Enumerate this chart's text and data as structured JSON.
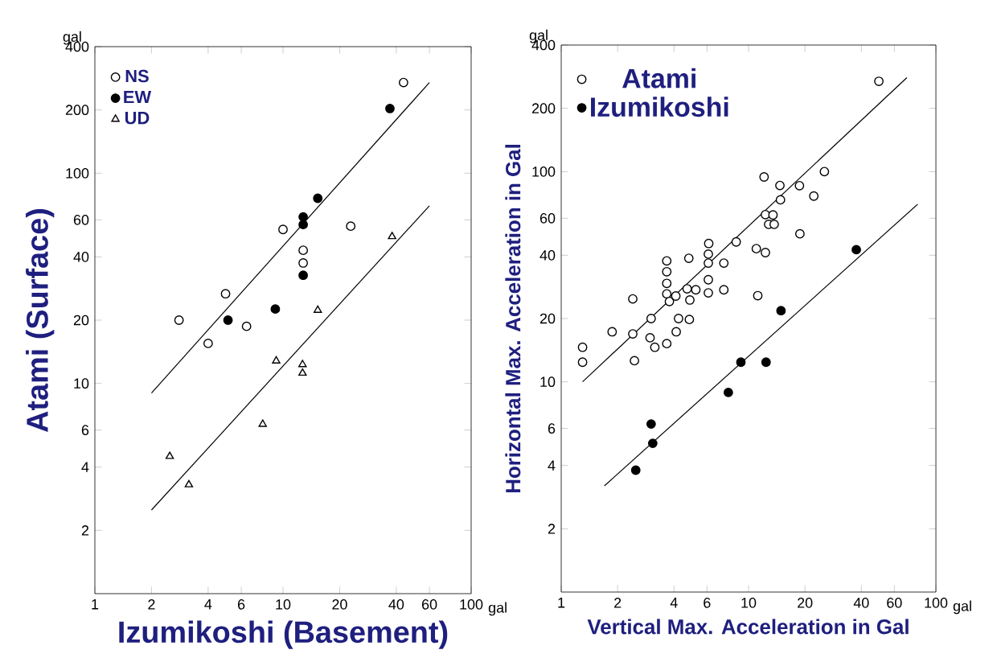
{
  "chart_data": [
    {
      "type": "scatter",
      "log": "xy",
      "xlabel": "Izumikoshi (Basement)",
      "ylabel": "Atami (Surface)",
      "legend": "top left",
      "xlim": [
        1,
        100
      ],
      "ylim": [
        1,
        400
      ],
      "xticks": [
        1,
        2,
        4,
        6,
        10,
        20,
        40,
        60,
        100
      ],
      "yticks": [
        2,
        4,
        6,
        10,
        20,
        40,
        60,
        100,
        200,
        400
      ],
      "annotations": [
        "gal",
        "gal"
      ],
      "series": [
        {
          "name": "NS",
          "marker": "circle",
          "color": "#ffffff",
          "x": [
            43.7,
            2.8,
            4.0,
            4.95,
            6.4,
            10,
            12.8,
            12.8,
            22.9
          ],
          "values": [
            270,
            20,
            15.5,
            26.7,
            18.7,
            54,
            43,
            37.4,
            56
          ]
        },
        {
          "name": "EW",
          "marker": "circle",
          "color": "#000000",
          "x": [
            37,
            5.1,
            9.1,
            12.8,
            12.8,
            12.8,
            15.3
          ],
          "values": [
            203,
            20,
            22.6,
            62,
            57,
            32.7,
            76
          ]
        },
        {
          "name": "UD",
          "marker": "triangle",
          "color": "#ffffff",
          "x": [
            38,
            2.5,
            3.16,
            7.8,
            9.2,
            12.7,
            12.7,
            15.3
          ],
          "values": [
            50,
            4.5,
            3.3,
            6.4,
            12.8,
            12.3,
            11.2,
            22.3
          ]
        },
        {
          "type": "line",
          "marker": "none",
          "line_style": "solid",
          "color": "#000000",
          "x": [
            2,
            60
          ],
          "values": [
            9,
            270
          ]
        },
        {
          "type": "line",
          "marker": "none",
          "line_style": "solid",
          "color": "#000000",
          "x": [
            2,
            60
          ],
          "values": [
            2.5,
            70
          ]
        }
      ]
    },
    {
      "type": "scatter",
      "log": "xy",
      "xlabel": "Vertical Max. Acceleration in Gal",
      "ylabel": "Horizontal Max. Acceleration in Gal",
      "legend": "top left",
      "xlim": [
        1,
        100
      ],
      "ylim": [
        1,
        400
      ],
      "xticks": [
        1,
        2,
        4,
        6,
        10,
        20,
        40,
        60,
        100
      ],
      "yticks": [
        2,
        4,
        6,
        10,
        20,
        40,
        60,
        100,
        200,
        400
      ],
      "annotations": [
        "gal",
        "gal"
      ],
      "series": [
        {
          "name": "Atami",
          "marker": "circle",
          "color": "#ffffff",
          "x": [
            49.6,
            1.3,
            1.3,
            1.87,
            2.41,
            2.41,
            2.46,
            3.02,
            2.98,
            3.16,
            3.66,
            3.66,
            3.66,
            3.66,
            3.78,
            3.66,
            4.09,
            4.11,
            4.23,
            4.8,
            4.7,
            4.86,
            4.83,
            5.23,
            6.13,
            6.1,
            6.1,
            6.1,
            6.1,
            7.38,
            7.38,
            8.59,
            11.0,
            11.2,
            12.3,
            12.1,
            12.3,
            12.8,
            13.5,
            13.7,
            14.7,
            14.8,
            18.7,
            18.8,
            22.3,
            25.4
          ],
          "values": [
            269,
            14.6,
            12.4,
            17.3,
            24.8,
            16.9,
            12.6,
            20,
            16.2,
            14.6,
            37.6,
            33.4,
            29.4,
            26.2,
            24.1,
            15.2,
            25.6,
            17.3,
            20,
            38.7,
            27.7,
            24.5,
            19.8,
            27.4,
            45.5,
            40.5,
            36.7,
            30.6,
            26.5,
            36.7,
            27.4,
            46.3,
            43,
            25.7,
            41.2,
            94.3,
            62.4,
            56.1,
            62.2,
            56.1,
            85.9,
            73.4,
            85.7,
            50.6,
            76.5,
            100
          ]
        },
        {
          "name": "Izumikoshi",
          "marker": "circle",
          "color": "#000000",
          "x": [
            37.6,
            3.02,
            3.08,
            2.5,
            7.8,
            9.1,
            12.4,
            14.9
          ],
          "values": [
            42.5,
            6.3,
            5.1,
            3.8,
            8.9,
            12.4,
            12.4,
            21.8
          ]
        },
        {
          "type": "line",
          "marker": "none",
          "line_style": "solid",
          "color": "#000000",
          "x": [
            1.3,
            70
          ],
          "values": [
            10,
            280
          ]
        },
        {
          "type": "line",
          "marker": "none",
          "line_style": "solid",
          "color": "#000000",
          "x": [
            1.7,
            80
          ],
          "values": [
            3.2,
            70
          ]
        }
      ]
    }
  ]
}
